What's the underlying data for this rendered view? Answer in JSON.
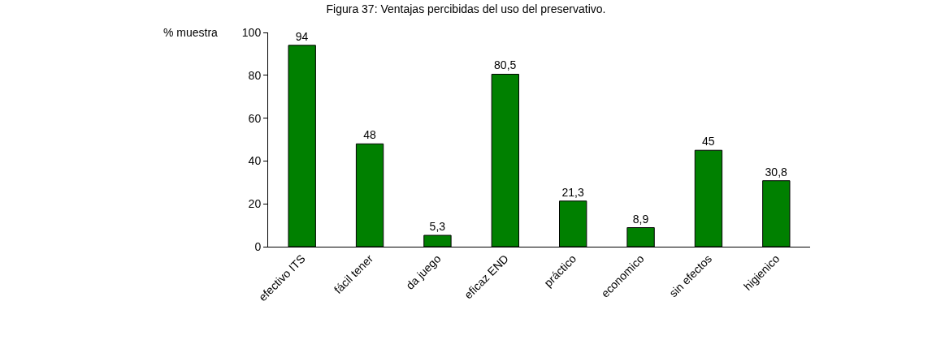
{
  "chart_data": {
    "type": "bar",
    "title": "Figura 37: Ventajas percibidas del uso del preservativo.",
    "ylabel": "% muestra",
    "categories": [
      "efectivo ITS",
      "fácil tener",
      "da juego",
      "eficaz END",
      "práctico",
      "economico",
      "sin efectos",
      "higienico"
    ],
    "values": [
      94,
      48,
      5.3,
      80.5,
      21.3,
      8.9,
      45,
      30.8
    ],
    "value_labels": [
      "94",
      "48",
      "5,3",
      "80,5",
      "21,3",
      "8,9",
      "45",
      "30,8"
    ],
    "color": "#008000",
    "ylim": [
      0,
      100
    ],
    "yticks": [
      0,
      20,
      40,
      60,
      80,
      100
    ]
  }
}
